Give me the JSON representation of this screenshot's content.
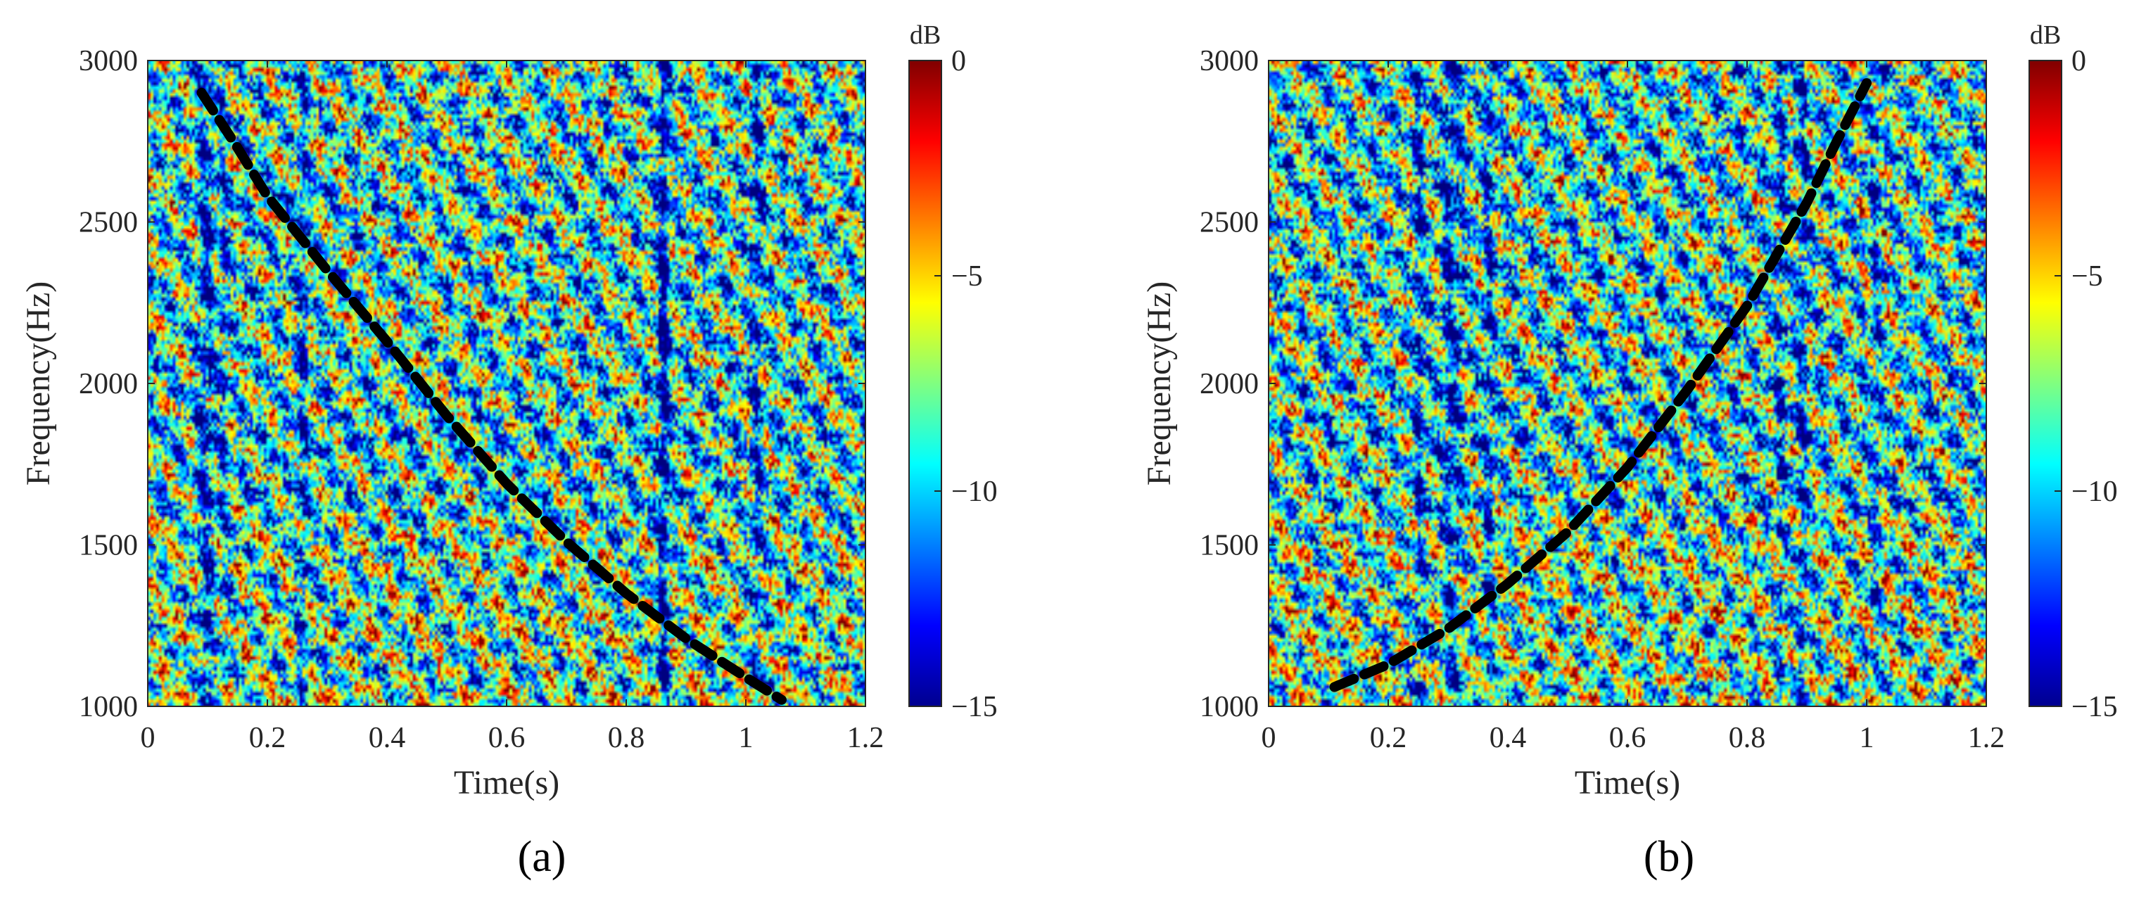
{
  "chart_data": [
    {
      "type": "heatmap",
      "panel_label": "(a)",
      "title": "",
      "xlabel": "Time(s)",
      "ylabel": "Frequency(Hz)",
      "xlim": [
        0,
        1.2
      ],
      "ylim": [
        1000,
        3000
      ],
      "xticks": [
        0,
        0.2,
        0.4,
        0.6,
        0.8,
        1,
        1.2
      ],
      "xtick_labels": [
        "0",
        "0.2",
        "0.4",
        "0.6",
        "0.8",
        "1",
        "1.2"
      ],
      "yticks": [
        1000,
        1500,
        2000,
        2500,
        3000
      ],
      "ytick_labels": [
        "1000",
        "1500",
        "2000",
        "2500",
        "3000"
      ],
      "colormap": "jet",
      "colorbar": {
        "label": "dB",
        "range": [
          -15,
          0
        ],
        "ticks": [
          -15,
          -10,
          -5,
          0
        ],
        "tick_labels": [
          "−15",
          "−10",
          "−5",
          "0"
        ]
      },
      "overlay": {
        "name": "down-chirp trace",
        "style": "black dashed",
        "points": [
          [
            0.09,
            2900
          ],
          [
            0.15,
            2730
          ],
          [
            0.2,
            2580
          ],
          [
            0.3,
            2350
          ],
          [
            0.4,
            2130
          ],
          [
            0.5,
            1900
          ],
          [
            0.6,
            1690
          ],
          [
            0.7,
            1510
          ],
          [
            0.8,
            1350
          ],
          [
            0.9,
            1210
          ],
          [
            1.0,
            1090
          ],
          [
            1.06,
            1020
          ]
        ]
      }
    },
    {
      "type": "heatmap",
      "panel_label": "(b)",
      "title": "",
      "xlabel": "Time(s)",
      "ylabel": "Frequency(Hz)",
      "xlim": [
        0,
        1.2
      ],
      "ylim": [
        1000,
        3000
      ],
      "xticks": [
        0,
        0.2,
        0.4,
        0.6,
        0.8,
        1,
        1.2
      ],
      "xtick_labels": [
        "0",
        "0.2",
        "0.4",
        "0.6",
        "0.8",
        "1",
        "1.2"
      ],
      "yticks": [
        1000,
        1500,
        2000,
        2500,
        3000
      ],
      "ytick_labels": [
        "1000",
        "1500",
        "2000",
        "2500",
        "3000"
      ],
      "colormap": "jet",
      "colorbar": {
        "label": "dB",
        "range": [
          -15,
          0
        ],
        "ticks": [
          -15,
          -10,
          -5,
          0
        ],
        "tick_labels": [
          "−15",
          "−10",
          "−5",
          "0"
        ]
      },
      "overlay": {
        "name": "up-chirp trace",
        "style": "black dashed",
        "points": [
          [
            0.11,
            1060
          ],
          [
            0.2,
            1130
          ],
          [
            0.3,
            1240
          ],
          [
            0.4,
            1380
          ],
          [
            0.5,
            1540
          ],
          [
            0.6,
            1740
          ],
          [
            0.7,
            1980
          ],
          [
            0.8,
            2240
          ],
          [
            0.9,
            2560
          ],
          [
            0.95,
            2750
          ],
          [
            1.0,
            2930
          ]
        ]
      }
    }
  ],
  "colors": {
    "trace": "#000000",
    "text": "#262626",
    "axis": "#262626"
  }
}
